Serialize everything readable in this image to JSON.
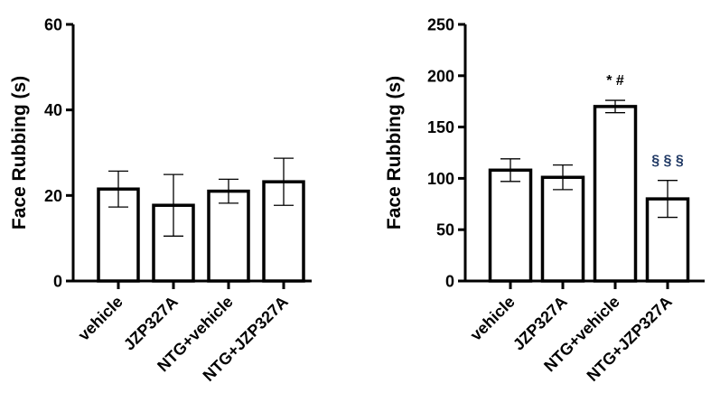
{
  "chart_data": [
    {
      "type": "bar",
      "ylabel": "Face Rubbing (s)",
      "categories": [
        "vehicle",
        "JZP327A",
        "NTG+vehicle",
        "NTG+JZP327A"
      ],
      "values": [
        21.5,
        17.7,
        21,
        23.2
      ],
      "errors": [
        4.2,
        7.2,
        2.8,
        5.5
      ],
      "ylim": [
        0,
        60
      ],
      "yticks": [
        0,
        20,
        40,
        60
      ],
      "annotations": [
        "",
        "",
        "",
        ""
      ],
      "grid": false
    },
    {
      "type": "bar",
      "ylabel": "Face Rubbing (s)",
      "categories": [
        "vehicle",
        "JZP327A",
        "NTG+vehicle",
        "NTG+JZP327A"
      ],
      "values": [
        108,
        101,
        170,
        80
      ],
      "errors": [
        11,
        12,
        6,
        18
      ],
      "ylim": [
        0,
        250
      ],
      "yticks": [
        0,
        50,
        100,
        150,
        200,
        250
      ],
      "annotations": [
        "",
        "",
        "* #",
        "§ § §"
      ],
      "annotation_colors": [
        "#000000",
        "#000000",
        "#000000",
        "#1f3864"
      ],
      "grid": false
    }
  ]
}
